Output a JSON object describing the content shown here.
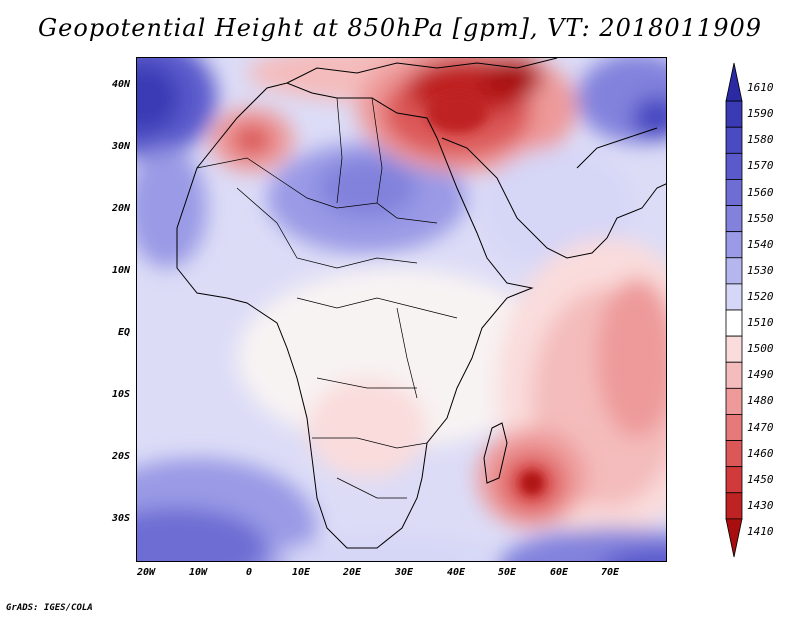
{
  "title": "Geopotential Height at 850hPa [gpm], VT: 2018011909",
  "footer": "GrADS: IGES/COLA",
  "lat_labels": [
    "40N",
    "30N",
    "20N",
    "10N",
    "EQ",
    "10S",
    "20S",
    "30S"
  ],
  "lon_labels": [
    "20W",
    "10W",
    "0",
    "10E",
    "20E",
    "30E",
    "40E",
    "50E",
    "60E",
    "70E"
  ],
  "colorbar": {
    "levels": [
      "1610",
      "1590",
      "1580",
      "1570",
      "1560",
      "1550",
      "1540",
      "1530",
      "1520",
      "1510",
      "1500",
      "1490",
      "1480",
      "1470",
      "1460",
      "1450",
      "1430",
      "1410"
    ],
    "colors": [
      "#2a2aa5",
      "#3a3ab5",
      "#4a4ac2",
      "#5a5acc",
      "#6d6dd4",
      "#8282dd",
      "#9a9ae6",
      "#b6b6ef",
      "#d6d6f7",
      "#ffffff",
      "#fadcdc",
      "#f4bcbc",
      "#ee9a9a",
      "#e67a7a",
      "#dc5858",
      "#d03a3a",
      "#bf2222",
      "#a80e0e"
    ]
  }
}
